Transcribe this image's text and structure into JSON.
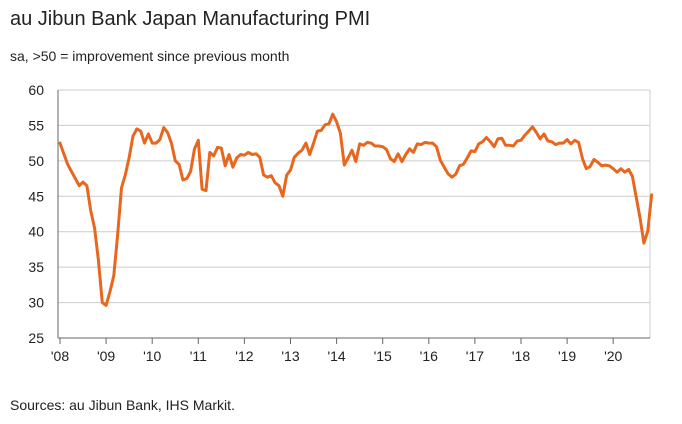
{
  "header": {
    "title": "au Jibun Bank Japan Manufacturing PMI",
    "subtitle": "sa, >50 = improvement since previous month"
  },
  "footer": {
    "source": "Sources: au Jibun Bank, IHS Markit."
  },
  "colors": {
    "line": "#e8671e",
    "grid": "#cccccc",
    "axis": "#666666"
  },
  "chart_data": {
    "type": "line",
    "title": "au Jibun Bank Japan Manufacturing PMI",
    "subtitle": "sa, >50 = improvement since previous month",
    "xlabel": "",
    "ylabel": "",
    "ylim": [
      25,
      60
    ],
    "yticks": [
      25,
      30,
      35,
      40,
      45,
      50,
      55,
      60
    ],
    "xticks": [
      "'08",
      "'09",
      "'10",
      "'11",
      "'12",
      "'13",
      "'14",
      "'15",
      "'16",
      "'17",
      "'18",
      "'19",
      "'20"
    ],
    "grid": true,
    "legend": "none",
    "series": [
      {
        "name": "au Jibun Bank Japan Manufacturing PMI",
        "start": "2008-01",
        "frequency": "monthly",
        "values": [
          52.5,
          51,
          49.5,
          48.5,
          47.5,
          46.5,
          47,
          46.5,
          43,
          40.5,
          36,
          30,
          29.6,
          31.5,
          33.8,
          39.5,
          46.2,
          48,
          50.5,
          53.5,
          54.5,
          54.2,
          52.5,
          53.8,
          52.5,
          52.5,
          53,
          54.7,
          54,
          52.5,
          50,
          49.5,
          47.3,
          47.5,
          48.5,
          51.7,
          52.9,
          46,
          45.8,
          51.2,
          50.7,
          51.9,
          51.8,
          49.3,
          50.9,
          49.1,
          50.4,
          50.9,
          50.8,
          51.2,
          50.9,
          51,
          50.5,
          48,
          47.7,
          47.9,
          46.9,
          46.5,
          45,
          48,
          48.7,
          50.5,
          51.1,
          51.5,
          52.5,
          50.9,
          52.5,
          54.2,
          54.3,
          55.1,
          55.2,
          56.6,
          55.5,
          53.9,
          49.4,
          50.4,
          51.5,
          49.9,
          52.4,
          52.2,
          52.6,
          52.5,
          52.1,
          52.1,
          52,
          51.6,
          50.3,
          49.9,
          51,
          49.9,
          50.9,
          51.7,
          51.2,
          52.4,
          52.3,
          52.6,
          52.5,
          52.5,
          52,
          50.1,
          49.1,
          48.2,
          47.7,
          48.1,
          49.3,
          49.5,
          50.4,
          51.4,
          51.3,
          52.4,
          52.7,
          53.3,
          52.7,
          52,
          53.1,
          53.2,
          52.2,
          52.2,
          52.1,
          52.8,
          52.9,
          53.6,
          54.2,
          54.8,
          54,
          53.1,
          53.8,
          52.8,
          52.7,
          52.3,
          52.5,
          52.5,
          53,
          52.4,
          52.9,
          52.6,
          50.3,
          48.9,
          49.2,
          50.2,
          49.8,
          49.3,
          49.4,
          49.3,
          48.9,
          48.4,
          48.9,
          48.4,
          48.8,
          47.8,
          44.8,
          41.9,
          38.4,
          40.1,
          45.2
        ]
      }
    ]
  }
}
